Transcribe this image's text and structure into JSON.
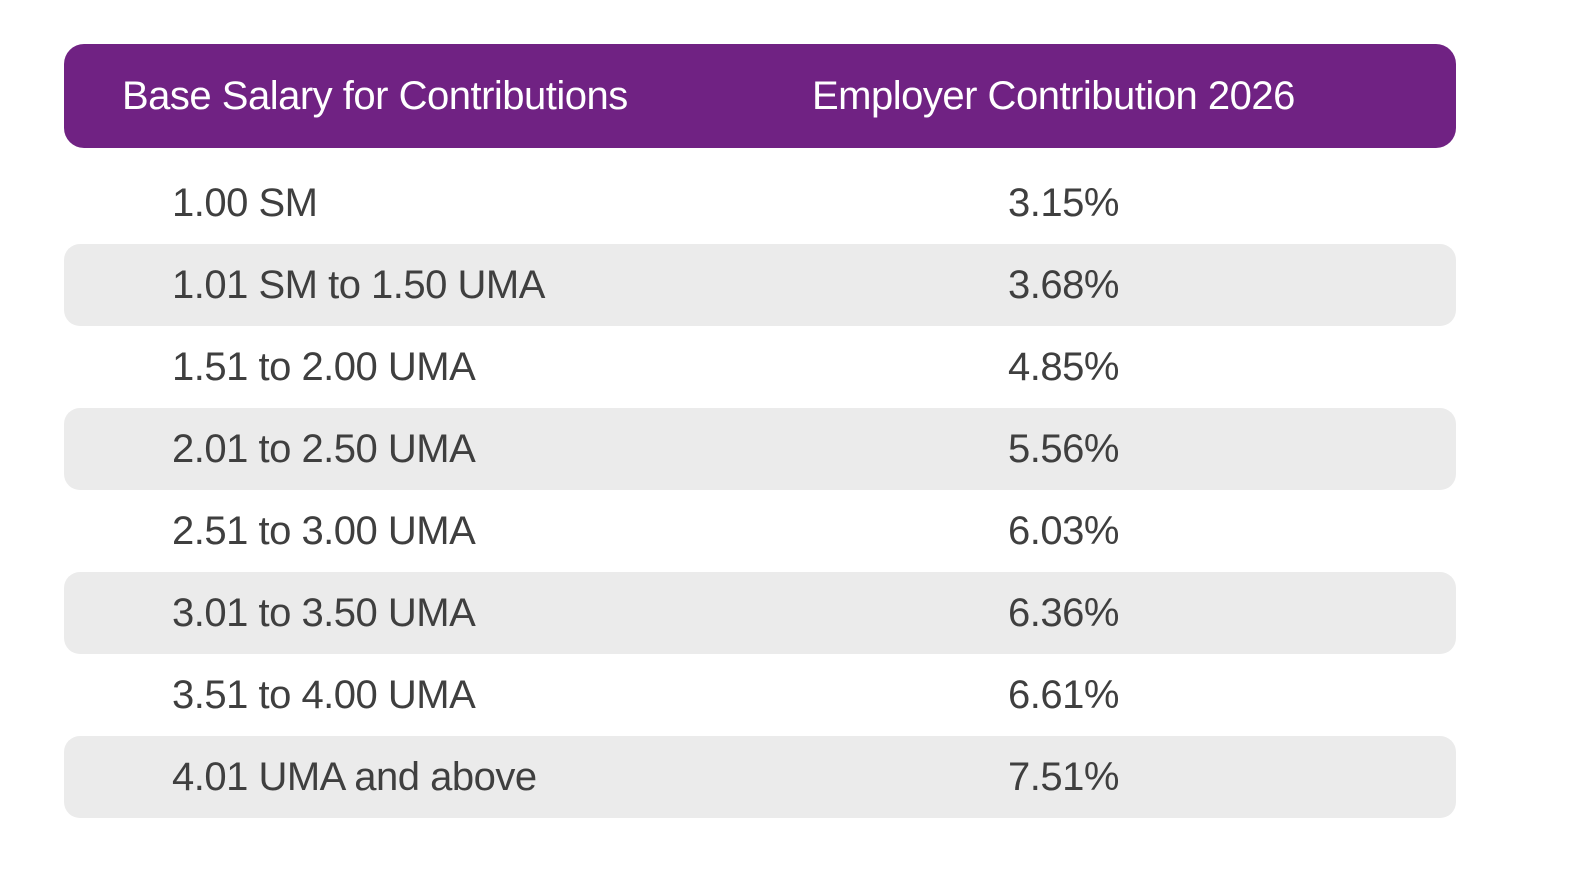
{
  "chart_data": {
    "type": "table",
    "columns": [
      "Base Salary for Contributions",
      "Employer Contribution 2026"
    ],
    "rows": [
      [
        "1.00 SM",
        "3.15%"
      ],
      [
        "1.01 SM to 1.50 UMA",
        "3.68%"
      ],
      [
        "1.51 to 2.00 UMA",
        "4.85%"
      ],
      [
        "2.01 to 2.50 UMA",
        "5.56%"
      ],
      [
        "2.51 to 3.00 UMA",
        "6.03%"
      ],
      [
        "3.01 to 3.50 UMA",
        "6.36%"
      ],
      [
        "3.51 to 4.00 UMA",
        "6.61%"
      ],
      [
        "4.01 UMA and above",
        "7.51%"
      ]
    ],
    "layout": {
      "header_position": "top",
      "alternating_row_shading": "even rows shaded starting from second data row",
      "value_alignment": "left"
    }
  },
  "colors": {
    "header_background": "#702283",
    "header_text": "#ffffff",
    "row_alternate_background": "#ebebeb",
    "body_text": "#3f3f3f",
    "page_background": "#ffffff"
  }
}
